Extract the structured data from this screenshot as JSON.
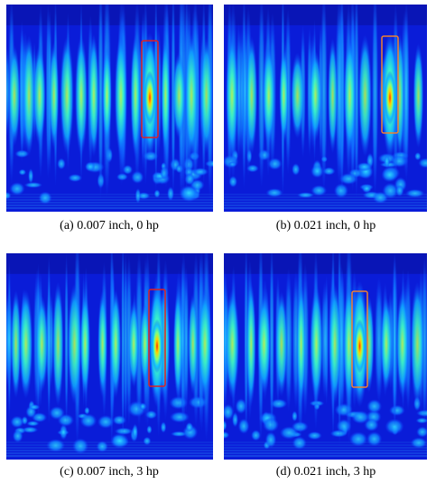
{
  "panels": [
    {
      "caption": "(a) 0.007 inch, 0 hp"
    },
    {
      "caption": "(b) 0.021 inch, 0 hp"
    },
    {
      "caption": "(c) 0.007 inch, 3 hp"
    },
    {
      "caption": "(d) 0.021 inch, 3 hp"
    }
  ]
}
